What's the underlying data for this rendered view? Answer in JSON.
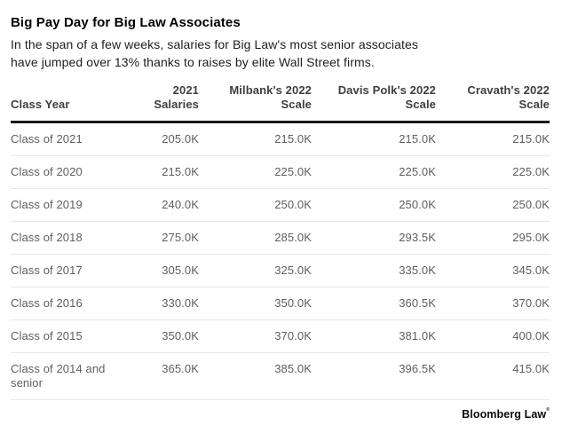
{
  "header": {
    "title": "Big Pay Day for Big Law Associates",
    "subtitle_lines": [
      "In the span of a few weeks, salaries for Big Law's most senior associates",
      "have jumped over 13% thanks to raises by elite Wall Street firms."
    ]
  },
  "table": {
    "columns": [
      {
        "label": "Class Year",
        "lines": [
          "Class Year"
        ]
      },
      {
        "label": "2021 Salaries",
        "lines": [
          "2021",
          "Salaries"
        ]
      },
      {
        "label": "Milbank's 2022 Scale",
        "lines": [
          "Milbank's 2022",
          "Scale"
        ]
      },
      {
        "label": "Davis Polk's 2022 Scale",
        "lines": [
          "Davis Polk's 2022",
          "Scale"
        ]
      },
      {
        "label": "Cravath's 2022 Scale",
        "lines": [
          "Cravath's 2022",
          "Scale"
        ]
      }
    ],
    "rows": [
      {
        "class_year": "Class of 2021",
        "values": [
          "205.0K",
          "215.0K",
          "215.0K",
          "215.0K"
        ]
      },
      {
        "class_year": "Class of 2020",
        "values": [
          "215.0K",
          "225.0K",
          "225.0K",
          "225.0K"
        ]
      },
      {
        "class_year": "Class of 2019",
        "values": [
          "240.0K",
          "250.0K",
          "250.0K",
          "250.0K"
        ]
      },
      {
        "class_year": "Class of 2018",
        "values": [
          "275.0K",
          "285.0K",
          "293.5K",
          "295.0K"
        ]
      },
      {
        "class_year": "Class of 2017",
        "values": [
          "305.0K",
          "325.0K",
          "335.0K",
          "345.0K"
        ]
      },
      {
        "class_year": "Class of 2016",
        "values": [
          "330.0K",
          "350.0K",
          "360.5K",
          "370.0K"
        ]
      },
      {
        "class_year": "Class of 2015",
        "values": [
          "350.0K",
          "370.0K",
          "381.0K",
          "400.0K"
        ]
      },
      {
        "class_year": "Class of 2014 and senior",
        "values": [
          "365.0K",
          "385.0K",
          "396.5K",
          "415.0K"
        ]
      }
    ]
  },
  "footer": {
    "credit": "Bloomberg Law",
    "mark": "®"
  },
  "colors": {
    "header_rule": "#1a1a1a",
    "row_divider": "#e8e8e8",
    "header_text": "#3f3f3f",
    "body_text": "#5e5e5e",
    "title_text": "#000000"
  },
  "chart_data": {
    "type": "table",
    "title": "Big Pay Day for Big Law Associates",
    "subtitle": "In the span of a few weeks, salaries for Big Law's most senior associates have jumped over 13% thanks to raises by elite Wall Street firms.",
    "columns": [
      "Class Year",
      "2021 Salaries",
      "Milbank's 2022 Scale",
      "Davis Polk's 2022 Scale",
      "Cravath's 2022 Scale"
    ],
    "rows": [
      [
        "Class of 2021",
        "205.0K",
        "215.0K",
        "215.0K",
        "215.0K"
      ],
      [
        "Class of 2020",
        "215.0K",
        "225.0K",
        "225.0K",
        "225.0K"
      ],
      [
        "Class of 2019",
        "240.0K",
        "250.0K",
        "250.0K",
        "250.0K"
      ],
      [
        "Class of 2018",
        "275.0K",
        "285.0K",
        "293.5K",
        "295.0K"
      ],
      [
        "Class of 2017",
        "305.0K",
        "325.0K",
        "335.0K",
        "345.0K"
      ],
      [
        "Class of 2016",
        "330.0K",
        "350.0K",
        "360.5K",
        "370.0K"
      ],
      [
        "Class of 2015",
        "350.0K",
        "370.0K",
        "381.0K",
        "400.0K"
      ],
      [
        "Class of 2014 and senior",
        "365.0K",
        "385.0K",
        "396.5K",
        "415.0K"
      ]
    ],
    "source": "Bloomberg Law"
  }
}
